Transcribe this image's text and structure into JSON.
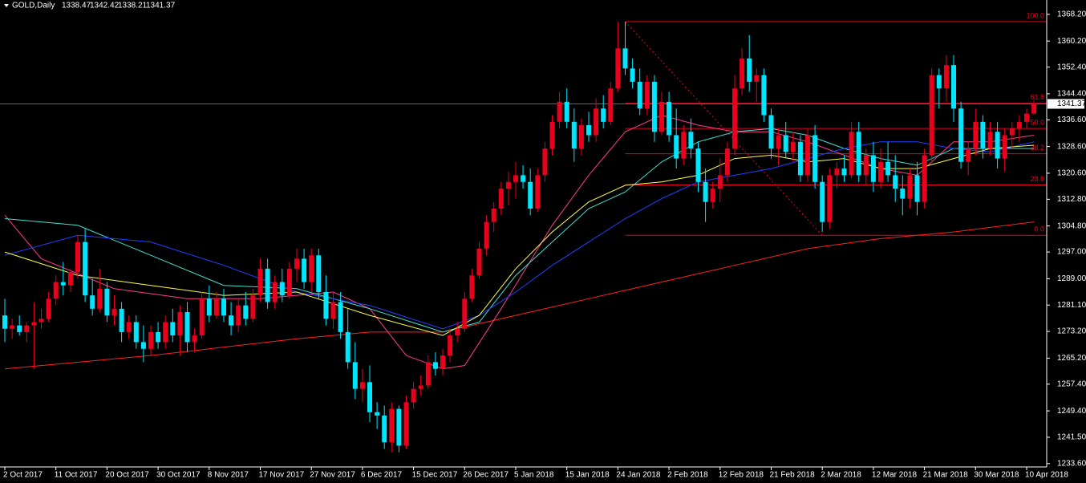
{
  "chart_data": {
    "type": "candlestick",
    "title": "GOLD,Daily",
    "up_color": "#e8001c",
    "down_color": "#00e6ff",
    "background": "#000000",
    "ylim": [
      1232.6,
      1372.5
    ],
    "yticks": [
      {
        "value": 1233.6,
        "label": "1233.60"
      },
      {
        "value": 1241.5,
        "label": "1241.50"
      },
      {
        "value": 1249.4,
        "label": "1249.40"
      },
      {
        "value": 1257.4,
        "label": "1257.40"
      },
      {
        "value": 1265.2,
        "label": "1265.20"
      },
      {
        "value": 1273.2,
        "label": "1273.20"
      },
      {
        "value": 1281.1,
        "label": "1281.10"
      },
      {
        "value": 1289.0,
        "label": "1289.00"
      },
      {
        "value": 1297.0,
        "label": "1297.00"
      },
      {
        "value": 1304.8,
        "label": "1304.80"
      },
      {
        "value": 1312.8,
        "label": "1312.80"
      },
      {
        "value": 1320.6,
        "label": "1320.60"
      },
      {
        "value": 1328.6,
        "label": "1328.60"
      },
      {
        "value": 1336.6,
        "label": "1336.60"
      },
      {
        "value": 1344.4,
        "label": "1344.40"
      },
      {
        "value": 1352.4,
        "label": "1352.40"
      },
      {
        "value": 1360.2,
        "label": "1360.20"
      },
      {
        "value": 1368.2,
        "label": "1368.20"
      }
    ],
    "xlim": [
      0,
      143
    ],
    "xticks": [
      {
        "value": 0,
        "label": "2 Oct 2017"
      },
      {
        "value": 7,
        "label": "11 Oct 2017"
      },
      {
        "value": 14,
        "label": "20 Oct 2017"
      },
      {
        "value": 21,
        "label": "30 Oct 2017"
      },
      {
        "value": 28,
        "label": "8 Nov 2017"
      },
      {
        "value": 35,
        "label": "17 Nov 2017"
      },
      {
        "value": 42,
        "label": "27 Nov 2017"
      },
      {
        "value": 49,
        "label": "6 Dec 2017"
      },
      {
        "value": 56,
        "label": "15 Dec 2017"
      },
      {
        "value": 63,
        "label": "26 Dec 2017"
      },
      {
        "value": 70,
        "label": "5 Jan 2018"
      },
      {
        "value": 77,
        "label": "15 Jan 2018"
      },
      {
        "value": 84,
        "label": "24 Jan 2018"
      },
      {
        "value": 91,
        "label": "2 Feb 2018"
      },
      {
        "value": 98,
        "label": "12 Feb 2018"
      },
      {
        "value": 105,
        "label": "21 Feb 2018"
      },
      {
        "value": 112,
        "label": "2 Mar 2018"
      },
      {
        "value": 119,
        "label": "12 Mar 2018"
      },
      {
        "value": 126,
        "label": "21 Mar 2018"
      },
      {
        "value": 133,
        "label": "30 Mar 2018"
      },
      {
        "value": 140,
        "label": "10 Apr 2018"
      }
    ],
    "ohlc": [
      [
        1278,
        1283,
        1270,
        1274
      ],
      [
        1274,
        1277,
        1271,
        1275
      ],
      [
        1275,
        1278,
        1272,
        1273
      ],
      [
        1273,
        1276,
        1270,
        1275
      ],
      [
        1275,
        1282,
        1262,
        1276
      ],
      [
        1276,
        1280,
        1274,
        1277
      ],
      [
        1277,
        1285,
        1276,
        1283
      ],
      [
        1283,
        1290,
        1281,
        1288
      ],
      [
        1288,
        1294,
        1284,
        1287
      ],
      [
        1287,
        1292,
        1285,
        1291
      ],
      [
        1291,
        1302,
        1289,
        1300
      ],
      [
        1300,
        1304,
        1282,
        1284
      ],
      [
        1284,
        1289,
        1278,
        1280
      ],
      [
        1280,
        1292,
        1279,
        1286
      ],
      [
        1286,
        1288,
        1276,
        1278
      ],
      [
        1278,
        1284,
        1275,
        1280
      ],
      [
        1280,
        1282,
        1270,
        1273
      ],
      [
        1273,
        1278,
        1271,
        1276
      ],
      [
        1276,
        1278,
        1268,
        1270
      ],
      [
        1270,
        1275,
        1264,
        1268
      ],
      [
        1268,
        1275,
        1266,
        1273
      ],
      [
        1273,
        1276,
        1268,
        1270
      ],
      [
        1270,
        1278,
        1268,
        1276
      ],
      [
        1276,
        1280,
        1270,
        1272
      ],
      [
        1272,
        1281,
        1266,
        1279
      ],
      [
        1279,
        1282,
        1267,
        1270
      ],
      [
        1270,
        1274,
        1267,
        1272
      ],
      [
        1272,
        1285,
        1271,
        1283
      ],
      [
        1283,
        1287,
        1276,
        1278
      ],
      [
        1278,
        1285,
        1277,
        1283
      ],
      [
        1283,
        1286,
        1276,
        1278
      ],
      [
        1278,
        1282,
        1272,
        1275
      ],
      [
        1275,
        1283,
        1273,
        1281
      ],
      [
        1281,
        1285,
        1275,
        1277
      ],
      [
        1277,
        1286,
        1276,
        1284
      ],
      [
        1284,
        1295,
        1282,
        1292
      ],
      [
        1292,
        1295,
        1280,
        1282
      ],
      [
        1282,
        1290,
        1280,
        1288
      ],
      [
        1288,
        1292,
        1282,
        1284
      ],
      [
        1284,
        1294,
        1283,
        1292
      ],
      [
        1292,
        1298,
        1288,
        1295
      ],
      [
        1295,
        1298,
        1286,
        1288
      ],
      [
        1288,
        1298,
        1285,
        1296
      ],
      [
        1296,
        1298,
        1283,
        1285
      ],
      [
        1285,
        1290,
        1275,
        1277
      ],
      [
        1277,
        1285,
        1274,
        1282
      ],
      [
        1282,
        1285,
        1271,
        1273
      ],
      [
        1273,
        1280,
        1262,
        1264
      ],
      [
        1264,
        1270,
        1253,
        1256
      ],
      [
        1256,
        1262,
        1252,
        1258
      ],
      [
        1258,
        1263,
        1246,
        1249
      ],
      [
        1249,
        1252,
        1244,
        1248
      ],
      [
        1248,
        1251,
        1238,
        1240
      ],
      [
        1240,
        1252,
        1237,
        1250
      ],
      [
        1250,
        1251,
        1237,
        1239
      ],
      [
        1239,
        1254,
        1238,
        1252
      ],
      [
        1252,
        1258,
        1250,
        1256
      ],
      [
        1256,
        1260,
        1254,
        1257
      ],
      [
        1257,
        1266,
        1256,
        1264
      ],
      [
        1264,
        1267,
        1260,
        1262
      ],
      [
        1262,
        1268,
        1260,
        1266
      ],
      [
        1266,
        1274,
        1264,
        1272
      ],
      [
        1272,
        1276,
        1270,
        1274
      ],
      [
        1274,
        1285,
        1273,
        1283
      ],
      [
        1283,
        1292,
        1282,
        1290
      ],
      [
        1290,
        1300,
        1289,
        1298
      ],
      [
        1298,
        1308,
        1296,
        1306
      ],
      [
        1306,
        1312,
        1303,
        1310
      ],
      [
        1310,
        1318,
        1308,
        1316
      ],
      [
        1316,
        1321,
        1311,
        1318
      ],
      [
        1318,
        1324,
        1313,
        1320
      ],
      [
        1320,
        1323,
        1316,
        1318
      ],
      [
        1318,
        1322,
        1308,
        1310
      ],
      [
        1310,
        1322,
        1309,
        1320
      ],
      [
        1320,
        1330,
        1318,
        1328
      ],
      [
        1328,
        1338,
        1326,
        1336
      ],
      [
        1336,
        1345,
        1334,
        1342
      ],
      [
        1342,
        1346,
        1334,
        1336
      ],
      [
        1336,
        1340,
        1324,
        1328
      ],
      [
        1328,
        1337,
        1326,
        1335
      ],
      [
        1335,
        1339,
        1330,
        1332
      ],
      [
        1332,
        1343,
        1330,
        1340
      ],
      [
        1340,
        1344,
        1334,
        1336
      ],
      [
        1336,
        1348,
        1335,
        1346
      ],
      [
        1346,
        1366,
        1345,
        1358
      ],
      [
        1358,
        1366,
        1350,
        1352
      ],
      [
        1352,
        1355,
        1346,
        1348
      ],
      [
        1348,
        1352,
        1338,
        1340
      ],
      [
        1340,
        1350,
        1338,
        1348
      ],
      [
        1348,
        1350,
        1330,
        1333
      ],
      [
        1333,
        1345,
        1332,
        1342
      ],
      [
        1342,
        1345,
        1330,
        1332
      ],
      [
        1332,
        1340,
        1322,
        1325
      ],
      [
        1325,
        1335,
        1323,
        1333
      ],
      [
        1333,
        1337,
        1325,
        1328
      ],
      [
        1328,
        1330,
        1315,
        1318
      ],
      [
        1318,
        1322,
        1306,
        1312
      ],
      [
        1312,
        1318,
        1310,
        1316
      ],
      [
        1316,
        1325,
        1312,
        1320
      ],
      [
        1320,
        1330,
        1318,
        1328
      ],
      [
        1328,
        1350,
        1326,
        1346
      ],
      [
        1346,
        1358,
        1344,
        1355
      ],
      [
        1355,
        1362,
        1345,
        1348
      ],
      [
        1348,
        1352,
        1342,
        1350
      ],
      [
        1350,
        1352,
        1336,
        1338
      ],
      [
        1338,
        1340,
        1325,
        1328
      ],
      [
        1328,
        1334,
        1323,
        1332
      ],
      [
        1332,
        1336,
        1325,
        1327
      ],
      [
        1327,
        1333,
        1324,
        1330
      ],
      [
        1330,
        1332,
        1318,
        1320
      ],
      [
        1320,
        1334,
        1318,
        1332
      ],
      [
        1332,
        1335,
        1316,
        1318
      ],
      [
        1318,
        1320,
        1303,
        1306
      ],
      [
        1306,
        1322,
        1304,
        1320
      ],
      [
        1320,
        1324,
        1316,
        1322
      ],
      [
        1322,
        1326,
        1318,
        1320
      ],
      [
        1320,
        1336,
        1319,
        1333
      ],
      [
        1333,
        1336,
        1318,
        1320
      ],
      [
        1320,
        1328,
        1317,
        1326
      ],
      [
        1326,
        1330,
        1315,
        1318
      ],
      [
        1318,
        1328,
        1316,
        1324
      ],
      [
        1324,
        1330,
        1318,
        1320
      ],
      [
        1320,
        1326,
        1312,
        1316
      ],
      [
        1316,
        1320,
        1308,
        1313
      ],
      [
        1313,
        1322,
        1310,
        1320
      ],
      [
        1320,
        1324,
        1308,
        1312
      ],
      [
        1312,
        1328,
        1310,
        1326
      ],
      [
        1326,
        1352,
        1324,
        1350
      ],
      [
        1350,
        1352,
        1340,
        1346
      ],
      [
        1346,
        1356,
        1342,
        1353
      ],
      [
        1353,
        1356,
        1336,
        1340
      ],
      [
        1340,
        1342,
        1322,
        1324
      ],
      [
        1324,
        1330,
        1320,
        1328
      ],
      [
        1328,
        1340,
        1326,
        1336
      ],
      [
        1336,
        1338,
        1325,
        1328
      ],
      [
        1328,
        1336,
        1326,
        1333
      ],
      [
        1333,
        1336,
        1322,
        1325
      ],
      [
        1325,
        1334,
        1321,
        1332
      ],
      [
        1332,
        1336,
        1328,
        1334
      ],
      [
        1334,
        1338,
        1330,
        1336
      ],
      [
        1336,
        1340,
        1334,
        1338.47
      ],
      [
        1338.47,
        1342.42,
        1338.21,
        1341.37
      ]
    ],
    "indicators": [
      {
        "color": "#ff2020",
        "x": [
          0,
          20,
          40,
          50,
          60,
          70,
          80,
          90,
          100,
          110,
          120,
          130,
          141
        ],
        "values": [
          1262,
          1266,
          1271,
          1273,
          1273,
          1278,
          1283,
          1288,
          1293,
          1298,
          1301,
          1303,
          1306
        ]
      },
      {
        "color": "#ff3c8c",
        "x": [
          0,
          5,
          15,
          25,
          35,
          45,
          50,
          55,
          60,
          63,
          68,
          75,
          80,
          85,
          90,
          95,
          100,
          105,
          110,
          115,
          120,
          125,
          130,
          135,
          141
        ],
        "values": [
          1308,
          1295,
          1286,
          1283,
          1283,
          1285,
          1280,
          1266,
          1262,
          1263,
          1280,
          1305,
          1320,
          1333,
          1338,
          1335,
          1333,
          1333,
          1330,
          1326,
          1322,
          1320,
          1330,
          1330,
          1332
        ]
      },
      {
        "color": "#40e0d0",
        "x": [
          0,
          10,
          20,
          30,
          40,
          50,
          60,
          65,
          70,
          75,
          80,
          85,
          90,
          95,
          100,
          105,
          110,
          115,
          120,
          125,
          130,
          135,
          141
        ],
        "values": [
          1307,
          1305,
          1296,
          1287,
          1286,
          1280,
          1273,
          1276,
          1290,
          1300,
          1310,
          1315,
          1324,
          1330,
          1333,
          1334,
          1332,
          1328,
          1325,
          1323,
          1328,
          1328,
          1328
        ]
      },
      {
        "color": "#2040ff",
        "x": [
          0,
          10,
          20,
          30,
          40,
          50,
          60,
          65,
          70,
          75,
          80,
          85,
          90,
          95,
          100,
          105,
          110,
          115,
          120,
          125,
          130,
          135,
          141
        ],
        "values": [
          1296,
          1302,
          1300,
          1293,
          1285,
          1281,
          1274,
          1278,
          1285,
          1293,
          1300,
          1307,
          1313,
          1318,
          1320,
          1322,
          1325,
          1328,
          1330,
          1330,
          1328,
          1327,
          1330
        ]
      },
      {
        "color": "#ffff40",
        "x": [
          0,
          10,
          20,
          30,
          40,
          50,
          60,
          65,
          70,
          75,
          80,
          85,
          90,
          95,
          100,
          105,
          110,
          115,
          120,
          125,
          130,
          135,
          141
        ],
        "values": [
          1297,
          1290,
          1287,
          1284,
          1285,
          1278,
          1272,
          1278,
          1292,
          1303,
          1312,
          1317,
          1318,
          1320,
          1325,
          1326,
          1324,
          1325,
          1322,
          1322,
          1325,
          1328,
          1329
        ]
      }
    ],
    "fibonacci": {
      "color": "#e8001c",
      "high": 1366,
      "low": 1302,
      "start": 85,
      "end": 112,
      "levels": [
        {
          "value": 100,
          "label": "100.0"
        },
        {
          "value": 61.8,
          "label": "61.8"
        },
        {
          "value": 50,
          "label": "50.0"
        },
        {
          "value": 38.2,
          "label": "38.2"
        },
        {
          "value": 23.6,
          "label": "23.6"
        },
        {
          "value": 0,
          "label": "0.0"
        }
      ]
    },
    "price_line_color": "#3060ff"
  }
}
